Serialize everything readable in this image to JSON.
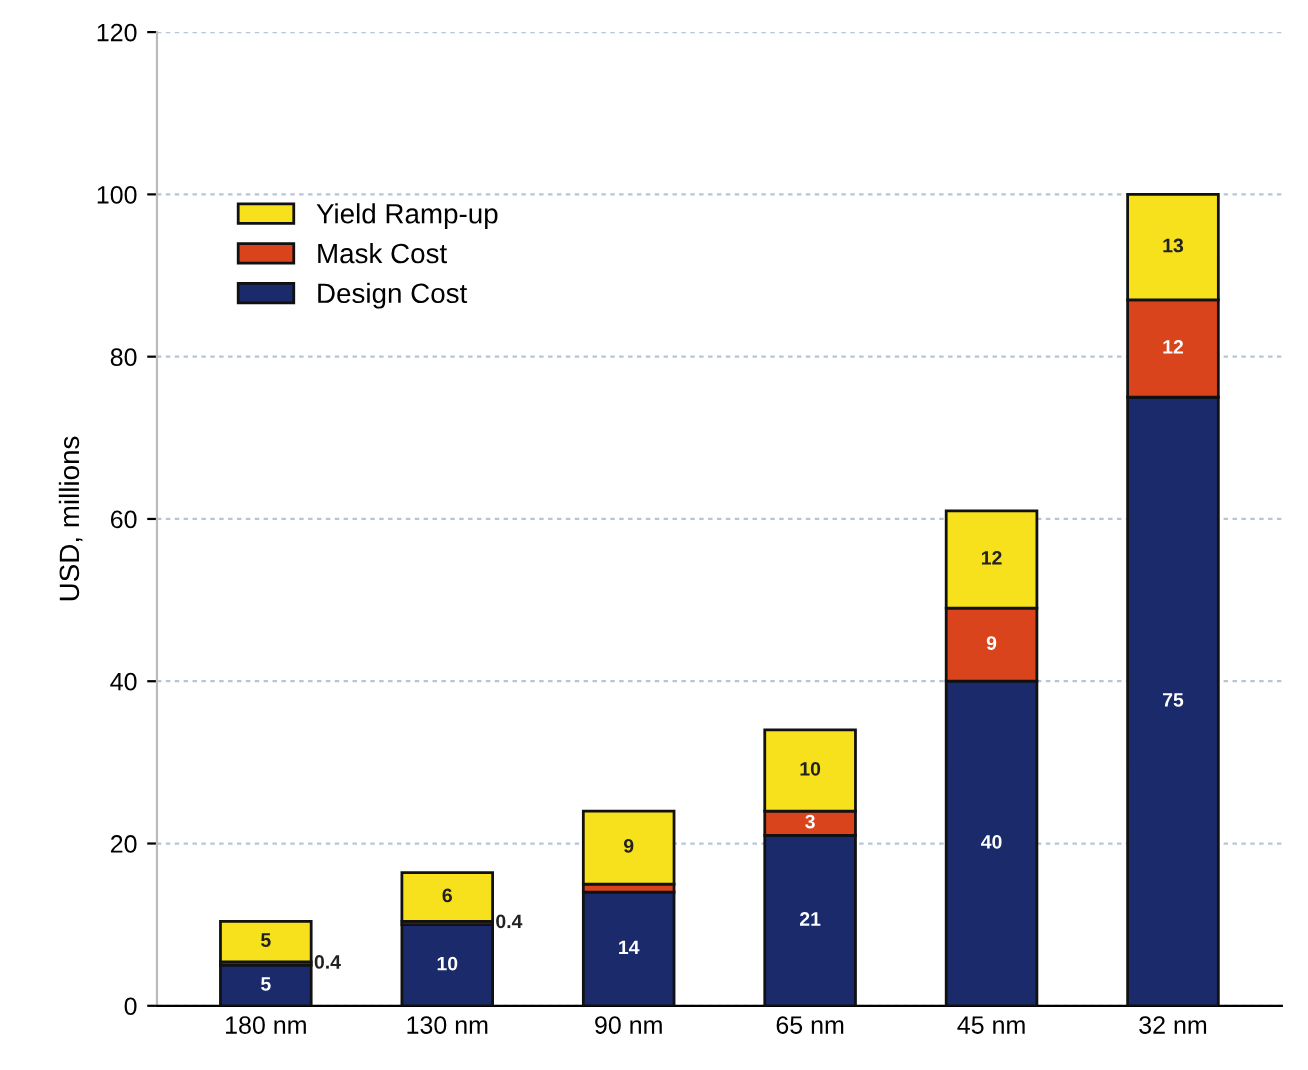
{
  "chart_data": {
    "type": "bar",
    "stacked": true,
    "ylabel": "USD, millions",
    "categories": [
      "180 nm",
      "130 nm",
      "90 nm",
      "65 nm",
      "45 nm",
      "32 nm"
    ],
    "series": [
      {
        "name": "Design Cost",
        "color": "#1b2a6b",
        "values": [
          5,
          10,
          14,
          21,
          40,
          75
        ],
        "value_labels": [
          "5",
          "10",
          "14",
          "21",
          "40",
          "75"
        ]
      },
      {
        "name": "Mask Cost",
        "color": "#d9441c",
        "values": [
          0.4,
          0.4,
          1,
          3,
          9,
          12
        ],
        "value_labels": [
          "0.4",
          "0.4",
          null,
          "3",
          "9",
          "12"
        ]
      },
      {
        "name": "Yield Ramp-up",
        "color": "#f7e01c",
        "values": [
          5,
          6,
          9,
          10,
          12,
          13
        ],
        "value_labels": [
          "5",
          "6",
          "9",
          "10",
          "12",
          "13"
        ]
      }
    ],
    "ylim": [
      0,
      120
    ],
    "yticks": [
      0,
      20,
      40,
      60,
      80,
      100,
      120
    ],
    "grid": "y",
    "legend": "top left"
  }
}
